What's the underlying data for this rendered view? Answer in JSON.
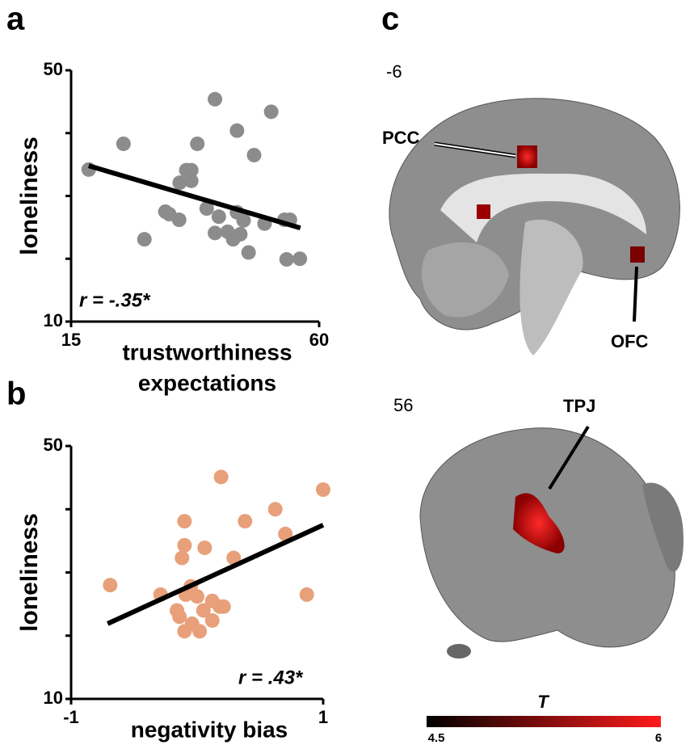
{
  "chart_data": [
    {
      "type": "scatter",
      "panel_label": "a",
      "ylabel": "loneliness",
      "xlabel": [
        "trustworthiness",
        "expectations"
      ],
      "annotation": "r = -.35*",
      "color": "#8c8c8c",
      "line_color": "#000000",
      "xlim": [
        15,
        60
      ],
      "ylim": [
        10,
        50
      ],
      "xticks": [
        15,
        60
      ],
      "yticks": [
        10,
        50
      ],
      "ytick_marks": [
        10,
        20,
        30,
        40,
        50
      ],
      "x": [
        18.2,
        24.5,
        28.3,
        32.1,
        32.8,
        34.6,
        34.7,
        35.9,
        36.8,
        36.8,
        37.9,
        41.1,
        45.1,
        41.8,
        41.1,
        43.4,
        44.4,
        45.1,
        45.7,
        47.2,
        48.2,
        46.3,
        50.1,
        51.3,
        53.7,
        54.1,
        54.7,
        56.5,
        39.6
      ],
      "values": [
        34.2,
        38.3,
        23.1,
        27.5,
        27.1,
        26.2,
        32.1,
        34.1,
        34.1,
        32.4,
        38.3,
        45.4,
        40.4,
        26.7,
        24.1,
        24.3,
        23.1,
        27.4,
        23.9,
        21.0,
        36.5,
        26.1,
        25.6,
        43.4,
        26.2,
        19.9,
        26.2,
        20.0,
        28.0
      ],
      "fit_x": [
        18.2,
        56.6
      ],
      "fit_y": [
        34.8,
        24.9
      ]
    },
    {
      "type": "scatter",
      "panel_label": "b",
      "ylabel": "loneliness",
      "xlabel": [
        "negativity bias"
      ],
      "annotation": "r = .43*",
      "color": "#e8a07a",
      "line_color": "#000000",
      "xlim": [
        -1,
        1
      ],
      "ylim": [
        10,
        50
      ],
      "xticks": [
        -1,
        1
      ],
      "yticks": [
        10,
        50
      ],
      "ytick_marks": [
        10,
        20,
        30,
        40,
        50
      ],
      "x": [
        -0.69,
        -0.29,
        -0.1,
        -0.1,
        -0.12,
        -0.16,
        -0.14,
        -0.1,
        0.02,
        -0.04,
        0.06,
        0.12,
        0.18,
        0.21,
        0.19,
        0.29,
        0.38,
        0.62,
        0.7,
        0.87,
        1.0,
        0.0,
        -0.09,
        0.12,
        0.05,
        -0.05
      ],
      "values": [
        28.0,
        26.5,
        38.1,
        34.3,
        32.3,
        24.0,
        23.0,
        20.7,
        20.7,
        21.9,
        33.9,
        22.4,
        24.6,
        24.6,
        45.1,
        32.3,
        38.1,
        40.0,
        36.1,
        26.5,
        43.1,
        26.2,
        26.5,
        25.5,
        24.0,
        27.8
      ],
      "fit_x": [
        -0.71,
        1.0
      ],
      "fit_y": [
        21.9,
        37.5
      ]
    }
  ],
  "brain": {
    "panel_label": "c",
    "sagittal": {
      "slice": "-6",
      "regions": [
        "PCC",
        "OFC"
      ]
    },
    "coronal": {
      "slice": "56",
      "regions": [
        "TPJ"
      ]
    },
    "colorbar": {
      "title": "T",
      "min": 4.5,
      "max": 6,
      "colors": [
        "#000000",
        "#ff1a1a"
      ]
    }
  }
}
